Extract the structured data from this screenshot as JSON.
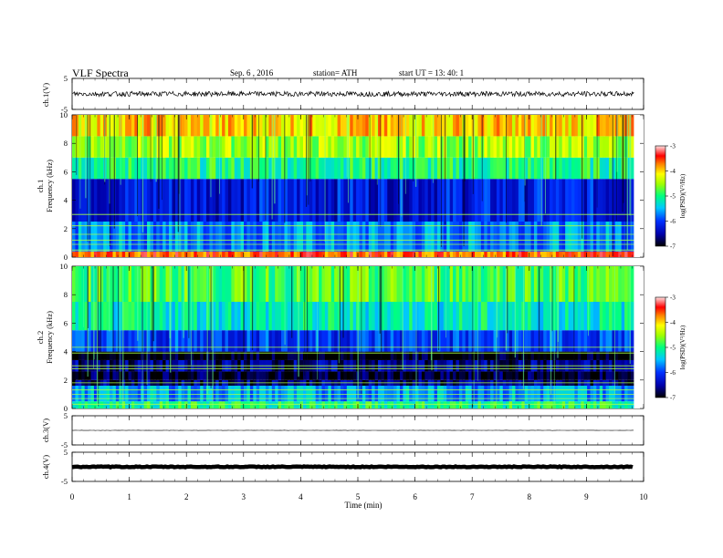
{
  "header": {
    "title": "VLF  Spectra",
    "date": "Sep. 6  , 2016",
    "station": "station= ATH",
    "start": "start  UT  =   13: 40: 1"
  },
  "chart_data": [
    {
      "type": "line",
      "panel": "ch1-waveform",
      "ylabel": "ch.1(V)",
      "ylim": [
        -5,
        5
      ],
      "yticks": [
        "5",
        "-5"
      ],
      "xlim": [
        0,
        10
      ],
      "data_extent_min": 9.83,
      "approx_level_v": 0,
      "approx_amplitude_v": 0.8
    },
    {
      "type": "heatmap",
      "panel": "ch1-spectrogram",
      "ylabel": "ch.1\nFrequency  (kHz)",
      "ylim": [
        0,
        10
      ],
      "yticks": [
        "0",
        "2",
        "4",
        "6",
        "8",
        "10"
      ],
      "xlim": [
        0,
        10
      ],
      "colorbar": {
        "label": "log(PSD)(V²/Hz)",
        "min": -7,
        "max": -3,
        "ticks": [
          "-3",
          "-4",
          "-5",
          "-6",
          "-7"
        ]
      },
      "bands_khz": [
        {
          "from": 0,
          "to": 0.4,
          "log_psd": -3.6
        },
        {
          "from": 0.4,
          "to": 2.5,
          "log_psd": -5.7
        },
        {
          "from": 2.5,
          "to": 5.5,
          "log_psd": -6.2
        },
        {
          "from": 5.5,
          "to": 7.0,
          "log_psd": -5.0
        },
        {
          "from": 7.0,
          "to": 8.5,
          "log_psd": -4.5
        },
        {
          "from": 8.5,
          "to": 10,
          "log_psd": -4.0
        }
      ],
      "tonal_lines_khz": [
        0.5,
        0.9,
        1.2,
        1.6,
        2.2,
        3.0
      ]
    },
    {
      "type": "heatmap",
      "panel": "ch2-spectrogram",
      "ylabel": "ch.2\nFrequency  (kHz)",
      "ylim": [
        0,
        10
      ],
      "yticks": [
        "0",
        "2",
        "4",
        "6",
        "8",
        "10"
      ],
      "xlim": [
        0,
        10
      ],
      "colorbar": {
        "label": "log(PSD)(V²/Hz)",
        "min": -7,
        "max": -3,
        "ticks": [
          "-3",
          "-4",
          "-5",
          "-6",
          "-7"
        ]
      },
      "bands_khz": [
        {
          "from": 0,
          "to": 0.5,
          "log_psd": -5.0
        },
        {
          "from": 0.5,
          "to": 1.6,
          "log_psd": -5.6
        },
        {
          "from": 1.6,
          "to": 2.0,
          "log_psd": -6.6
        },
        {
          "from": 2.0,
          "to": 2.6,
          "log_psd": -6.9
        },
        {
          "from": 2.6,
          "to": 3.4,
          "log_psd": -6.6
        },
        {
          "from": 3.4,
          "to": 4.0,
          "log_psd": -7.0
        },
        {
          "from": 4.0,
          "to": 5.5,
          "log_psd": -6.0
        },
        {
          "from": 5.5,
          "to": 7.5,
          "log_psd": -5.2
        },
        {
          "from": 7.5,
          "to": 10,
          "log_psd": -4.8
        }
      ],
      "tonal_lines_khz": [
        0.3,
        0.7,
        1.0,
        1.3,
        1.8,
        2.8,
        3.0,
        3.9,
        4.3
      ]
    },
    {
      "type": "line",
      "panel": "ch3-waveform",
      "ylabel": "ch.3(V)",
      "ylim": [
        -5,
        5
      ],
      "yticks": [
        "5",
        "-5"
      ],
      "xlim": [
        0,
        10
      ],
      "data_extent_min": 9.83,
      "approx_level_v": 0,
      "approx_amplitude_v": 0.05
    },
    {
      "type": "line",
      "panel": "ch4-waveform",
      "ylabel": "ch.4(V)",
      "ylim": [
        -5,
        5
      ],
      "yticks": [
        "5",
        "-5"
      ],
      "xlim": [
        0,
        10
      ],
      "data_extent_min": 9.83,
      "approx_level_v": 0,
      "approx_amplitude_v": 0.15
    }
  ],
  "xaxis": {
    "label": "Time  (min)",
    "ticks": [
      "0",
      "1",
      "2",
      "3",
      "4",
      "5",
      "6",
      "7",
      "8",
      "9",
      "10"
    ]
  }
}
